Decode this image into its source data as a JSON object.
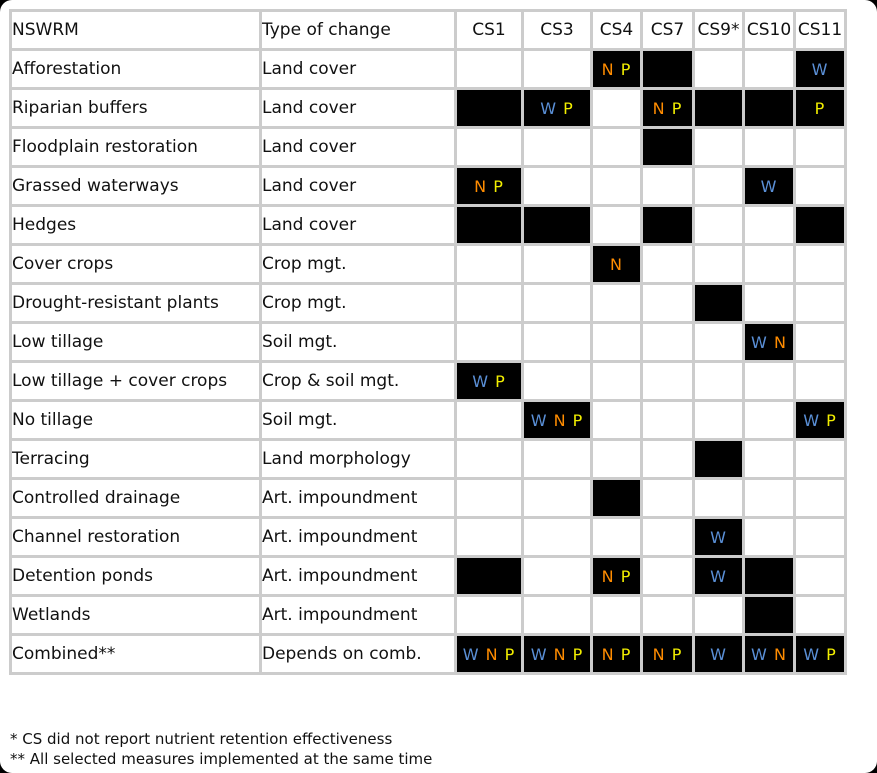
{
  "table": {
    "headers": {
      "nswrm": "NSWRM",
      "type": "Type of change",
      "cs": [
        "CS1",
        "CS3",
        "CS4",
        "CS7",
        "CS9*",
        "CS10",
        "CS11"
      ]
    },
    "legend_colors": {
      "W": "#5a8fd6",
      "N": "#ff8c00",
      "P": "#f2ee00",
      "filled": "#000000"
    },
    "rows": [
      {
        "name": "Afforestation",
        "type": "Land cover",
        "cells": [
          null,
          null,
          "NP",
          "",
          null,
          null,
          "W"
        ]
      },
      {
        "name": "Riparian buffers",
        "type": "Land cover",
        "cells": [
          "",
          "WP",
          null,
          "NP",
          "",
          "",
          "P"
        ]
      },
      {
        "name": "Floodplain restoration",
        "type": "Land cover",
        "cells": [
          null,
          null,
          null,
          "",
          null,
          null,
          null
        ]
      },
      {
        "name": "Grassed waterways",
        "type": "Land cover",
        "cells": [
          "NP",
          null,
          null,
          null,
          null,
          "W",
          null
        ]
      },
      {
        "name": "Hedges",
        "type": "Land cover",
        "cells": [
          "",
          "",
          null,
          "",
          null,
          null,
          ""
        ]
      },
      {
        "name": "Cover crops",
        "type": "Crop mgt.",
        "cells": [
          null,
          null,
          "N",
          null,
          null,
          null,
          null
        ]
      },
      {
        "name": "Drought-resistant plants",
        "type": "Crop mgt.",
        "cells": [
          null,
          null,
          null,
          null,
          "",
          null,
          null
        ]
      },
      {
        "name": "Low tillage",
        "type": "Soil mgt.",
        "cells": [
          null,
          null,
          null,
          null,
          null,
          "WN",
          null
        ]
      },
      {
        "name": "Low tillage + cover crops",
        "type": "Crop & soil mgt.",
        "cells": [
          "WP",
          null,
          null,
          null,
          null,
          null,
          null
        ]
      },
      {
        "name": "No tillage",
        "type": "Soil mgt.",
        "cells": [
          null,
          "WNP",
          null,
          null,
          null,
          null,
          "WP"
        ]
      },
      {
        "name": "Terracing",
        "type": "Land morphology",
        "cells": [
          null,
          null,
          null,
          null,
          "",
          null,
          null
        ]
      },
      {
        "name": "Controlled drainage",
        "type": "Art. impoundment",
        "cells": [
          null,
          null,
          "",
          null,
          null,
          null,
          null
        ]
      },
      {
        "name": "Channel restoration",
        "type": "Art. impoundment",
        "cells": [
          null,
          null,
          null,
          null,
          "W",
          null,
          null
        ]
      },
      {
        "name": "Detention ponds",
        "type": "Art. impoundment",
        "cells": [
          "",
          null,
          "NP",
          null,
          "W",
          "",
          null
        ]
      },
      {
        "name": "Wetlands",
        "type": "Art. impoundment",
        "cells": [
          null,
          null,
          null,
          null,
          null,
          "",
          null
        ]
      },
      {
        "name": "Combined**",
        "type": "Depends on comb.",
        "cells": [
          "WNP",
          "WNP",
          "NP",
          "NP",
          "W",
          "WN",
          "WP"
        ]
      }
    ]
  },
  "footnotes": [
    "* CS did not report nutrient retention effectiveness",
    "** All selected measures implemented at the same time"
  ]
}
